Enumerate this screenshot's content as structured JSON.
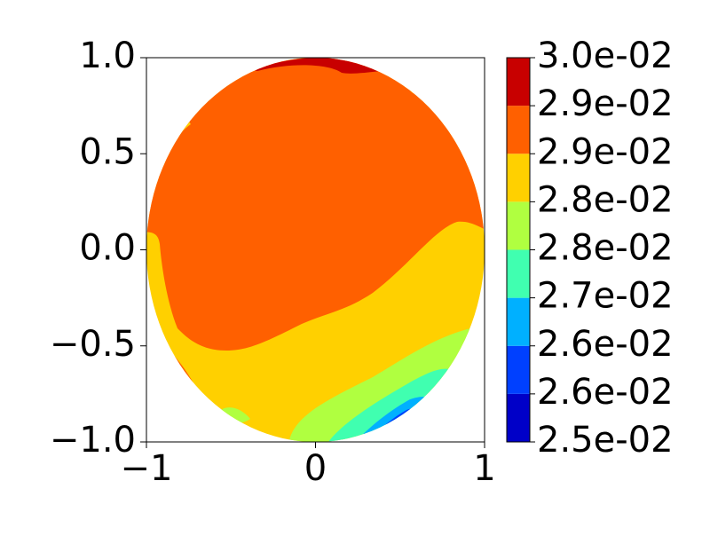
{
  "chart_data": {
    "type": "contourf",
    "xlim": [
      -1,
      1
    ],
    "ylim": [
      -1,
      1
    ],
    "xticks": [
      {
        "value": -1,
        "label": "−1"
      },
      0,
      1
    ],
    "yticks": [
      {
        "value": -1,
        "label": "−1.0"
      },
      {
        "value": -0.5,
        "label": "−0.5"
      },
      {
        "value": 0,
        "label": "0.0"
      },
      {
        "value": 0.5,
        "label": "0.5"
      },
      {
        "value": 1,
        "label": "1.0"
      }
    ],
    "levels": [
      {
        "value": 0.025,
        "label": "2.5e-02"
      },
      {
        "value": 0.025625,
        "label": "2.6e-02"
      },
      {
        "value": 0.02625,
        "label": "2.6e-02"
      },
      {
        "value": 0.026875,
        "label": "2.7e-02"
      },
      {
        "value": 0.0275,
        "label": "2.8e-02"
      },
      {
        "value": 0.028125,
        "label": "2.8e-02"
      },
      {
        "value": 0.02875,
        "label": "2.9e-02"
      },
      {
        "value": 0.029375,
        "label": "2.9e-02"
      },
      {
        "value": 0.03,
        "label": "3.0e-02"
      }
    ],
    "colors": [
      "#0000c8",
      "#0040ff",
      "#00b0ff",
      "#40ffb0",
      "#b0ff40",
      "#ffd000",
      "#ff6000",
      "#c80000"
    ]
  }
}
